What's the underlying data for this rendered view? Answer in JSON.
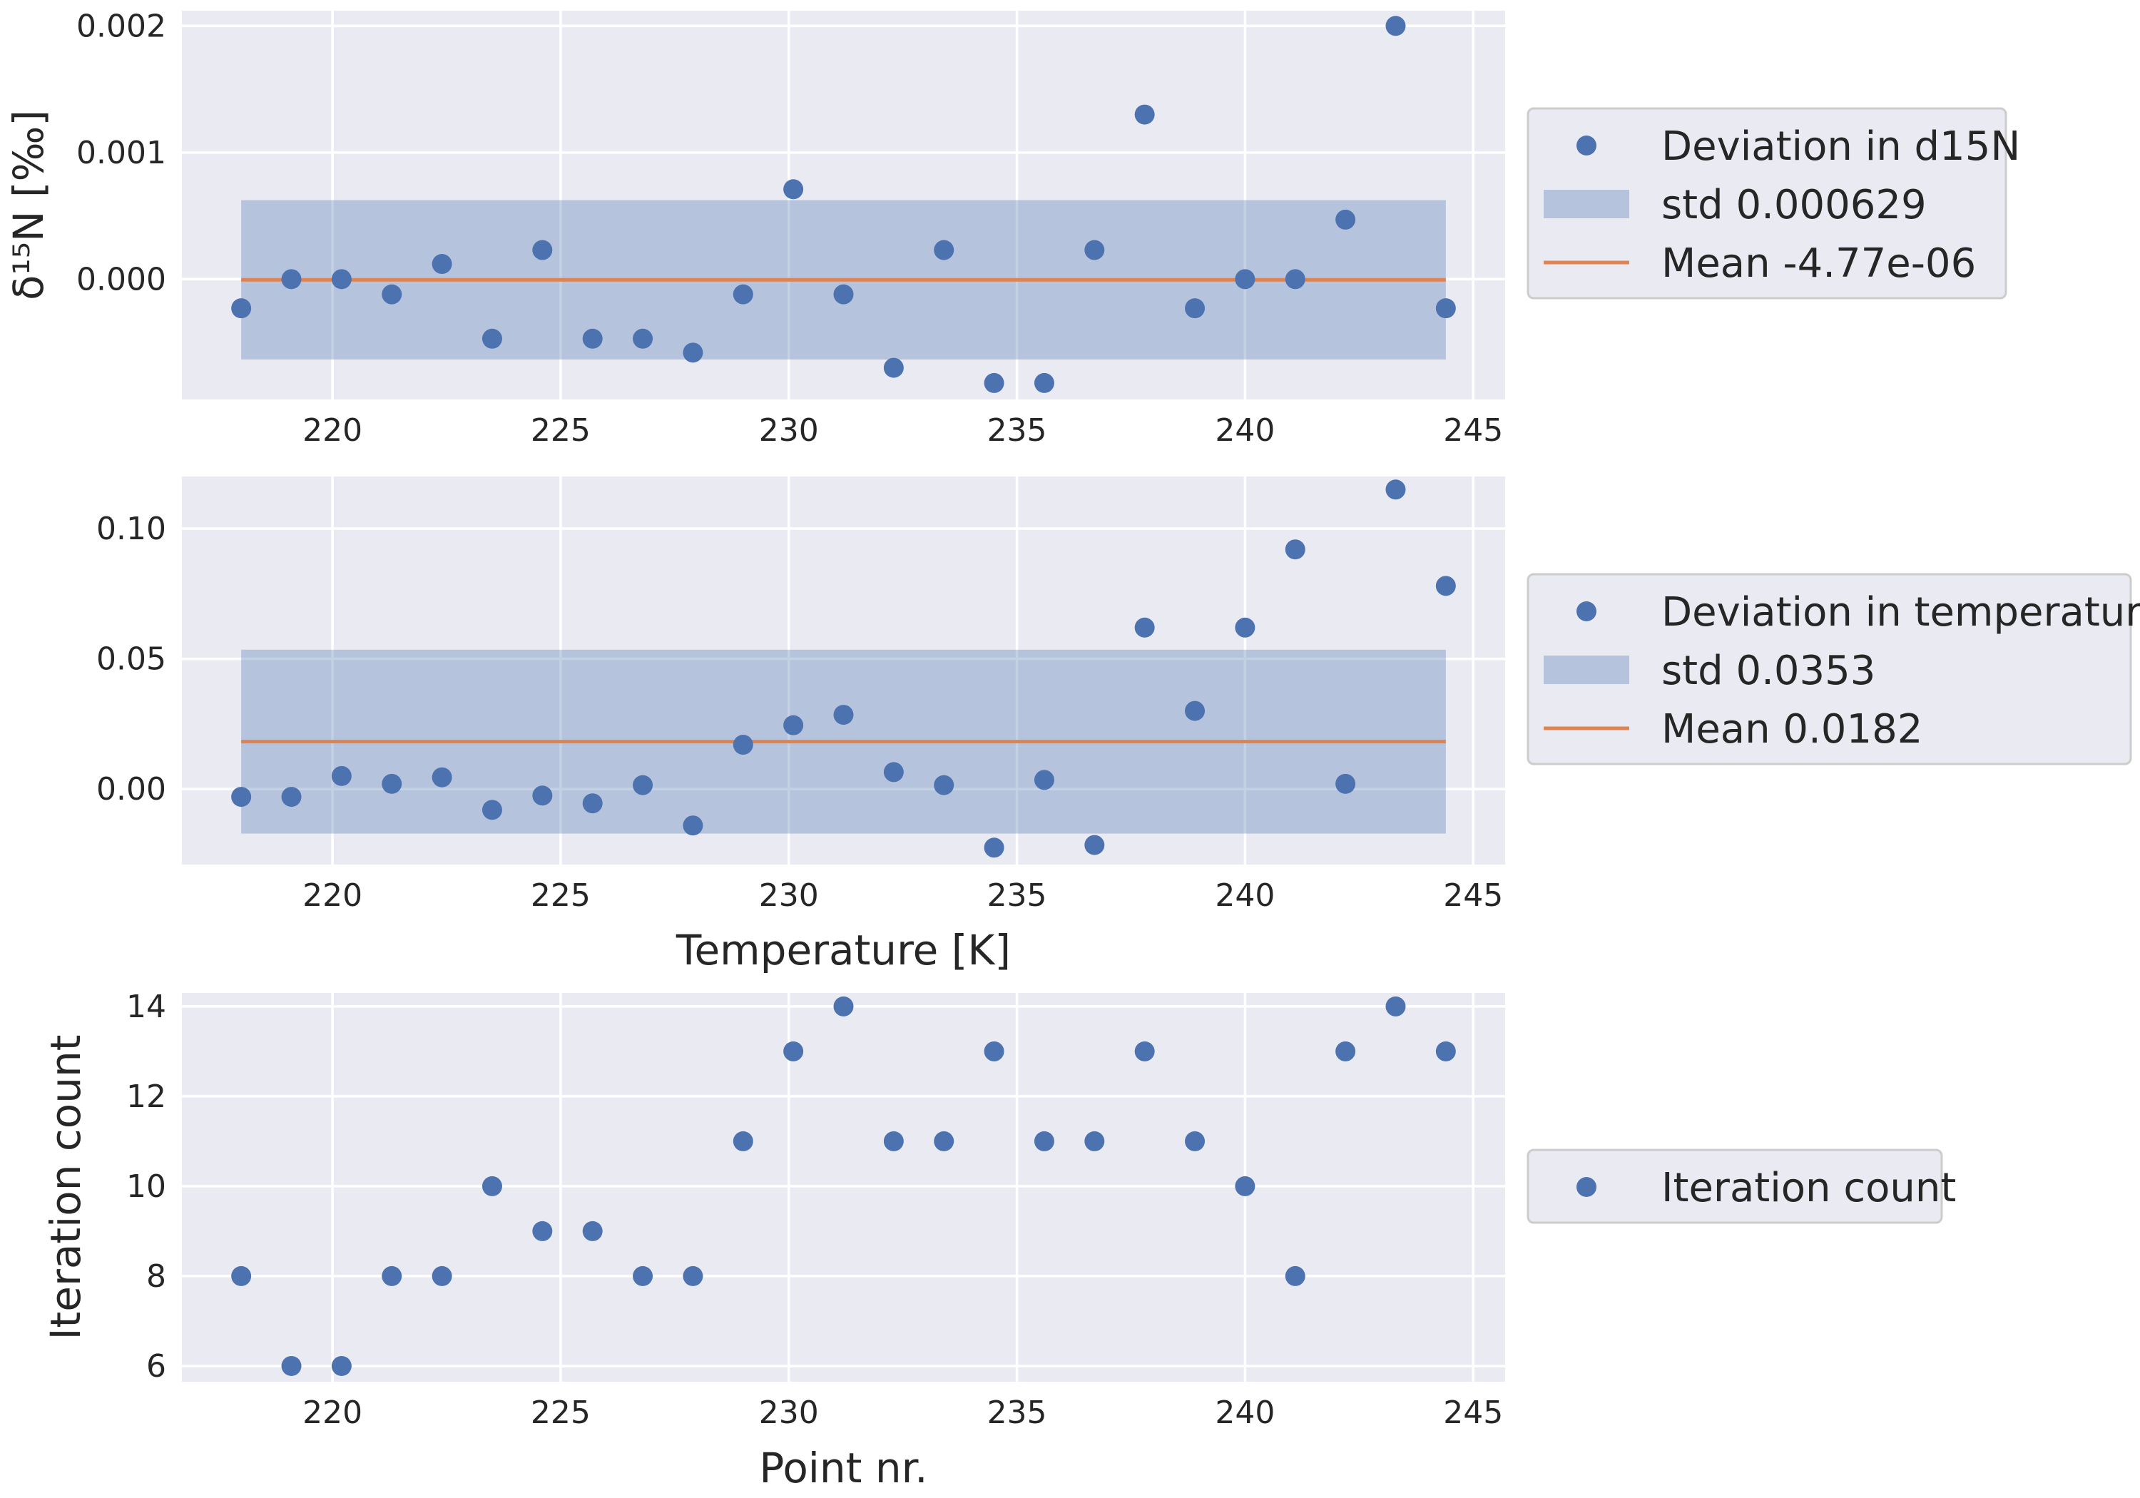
{
  "colors": {
    "points": "#4c72b0",
    "band": "#4c72b0",
    "mean_line": "#dd8452",
    "axes_background": "#eaeaf2",
    "grid": "#ffffff",
    "legend_background": "#eaeaf2",
    "legend_border": "#cccccc"
  },
  "chart_data": [
    {
      "type": "scatter",
      "xlabel": "",
      "ylabel": "δ¹⁵N [‰]",
      "xlim": [
        216.7,
        245.7
      ],
      "ylim": [
        -0.00095,
        0.00212
      ],
      "xticks": [
        "220",
        "225",
        "230",
        "235",
        "240",
        "245"
      ],
      "yticks": [
        "0.000",
        "0.001",
        "0.002"
      ],
      "grid": true,
      "legend_position": "outside-right",
      "series": [
        {
          "name": "Deviation in d15N",
          "kind": "points",
          "x": [
            218.0,
            219.1,
            220.2,
            221.3,
            222.4,
            223.5,
            224.6,
            225.7,
            226.8,
            227.9,
            229.0,
            230.1,
            231.2,
            232.3,
            233.4,
            234.5,
            235.6,
            236.7,
            237.8,
            238.9,
            240.0,
            241.1,
            242.2,
            243.3,
            244.4
          ],
          "y": [
            -0.00023,
            0.0,
            0.0,
            -0.00012,
            0.00012,
            -0.00047,
            0.00023,
            -0.00047,
            -0.00047,
            -0.00058,
            -0.00012,
            0.00071,
            -0.00012,
            -0.0007,
            0.00023,
            -0.00082,
            -0.00082,
            0.00023,
            0.0013,
            -0.00023,
            0.0,
            0.0,
            0.00047,
            0.002,
            -0.00023
          ]
        },
        {
          "name": "std 0.000629",
          "kind": "band",
          "x_range": [
            218.0,
            244.4
          ],
          "y_range": [
            -0.000634,
            0.000624
          ]
        },
        {
          "name": "Mean -4.77e-06",
          "kind": "hline",
          "x_range": [
            218.0,
            244.4
          ],
          "y": -4.77e-06
        }
      ]
    },
    {
      "type": "scatter",
      "xlabel": "Temperature [K]",
      "ylabel": "",
      "xlim": [
        216.7,
        245.7
      ],
      "ylim": [
        -0.029,
        0.12
      ],
      "xticks": [
        "220",
        "225",
        "230",
        "235",
        "240",
        "245"
      ],
      "yticks": [
        "0.00",
        "0.05",
        "0.10"
      ],
      "grid": true,
      "legend_position": "outside-right",
      "series": [
        {
          "name": "Deviation in temperature",
          "kind": "points",
          "x": [
            218.0,
            219.1,
            220.2,
            221.3,
            222.4,
            223.5,
            224.6,
            225.7,
            226.8,
            227.9,
            229.0,
            230.1,
            231.2,
            232.3,
            233.4,
            234.5,
            235.6,
            236.7,
            237.8,
            238.9,
            240.0,
            241.1,
            242.2,
            243.3,
            244.4
          ],
          "y": [
            -0.003,
            -0.003,
            0.005,
            0.002,
            0.0045,
            -0.008,
            -0.0025,
            -0.0055,
            0.0015,
            -0.014,
            0.017,
            0.0245,
            0.0285,
            0.0065,
            0.0015,
            -0.0225,
            0.0035,
            -0.0215,
            0.062,
            0.03,
            0.062,
            0.092,
            0.002,
            0.115,
            0.078
          ]
        },
        {
          "name": "std 0.0353",
          "kind": "band",
          "x_range": [
            218.0,
            244.4
          ],
          "y_range": [
            -0.0171,
            0.0535
          ]
        },
        {
          "name": "Mean 0.0182",
          "kind": "hline",
          "x_range": [
            218.0,
            244.4
          ],
          "y": 0.0182
        }
      ]
    },
    {
      "type": "scatter",
      "xlabel": "Point nr.",
      "ylabel": "Iteration count",
      "xlim": [
        216.7,
        245.7
      ],
      "ylim": [
        5.65,
        14.3
      ],
      "xticks": [
        "220",
        "225",
        "230",
        "235",
        "240",
        "245"
      ],
      "yticks": [
        "6",
        "8",
        "10",
        "12",
        "14"
      ],
      "grid": true,
      "legend_position": "outside-right",
      "series": [
        {
          "name": "Iteration count",
          "kind": "points",
          "x": [
            218.0,
            219.1,
            220.2,
            221.3,
            222.4,
            223.5,
            224.6,
            225.7,
            226.8,
            227.9,
            229.0,
            230.1,
            231.2,
            232.3,
            233.4,
            234.5,
            235.6,
            236.7,
            237.8,
            238.9,
            240.0,
            241.1,
            242.2,
            243.3,
            244.4
          ],
          "y": [
            8,
            6,
            6,
            8,
            8,
            10,
            9,
            9,
            8,
            8,
            11,
            13,
            14,
            11,
            11,
            13,
            11,
            11,
            13,
            11,
            10,
            8,
            13,
            14,
            13
          ]
        }
      ]
    }
  ]
}
